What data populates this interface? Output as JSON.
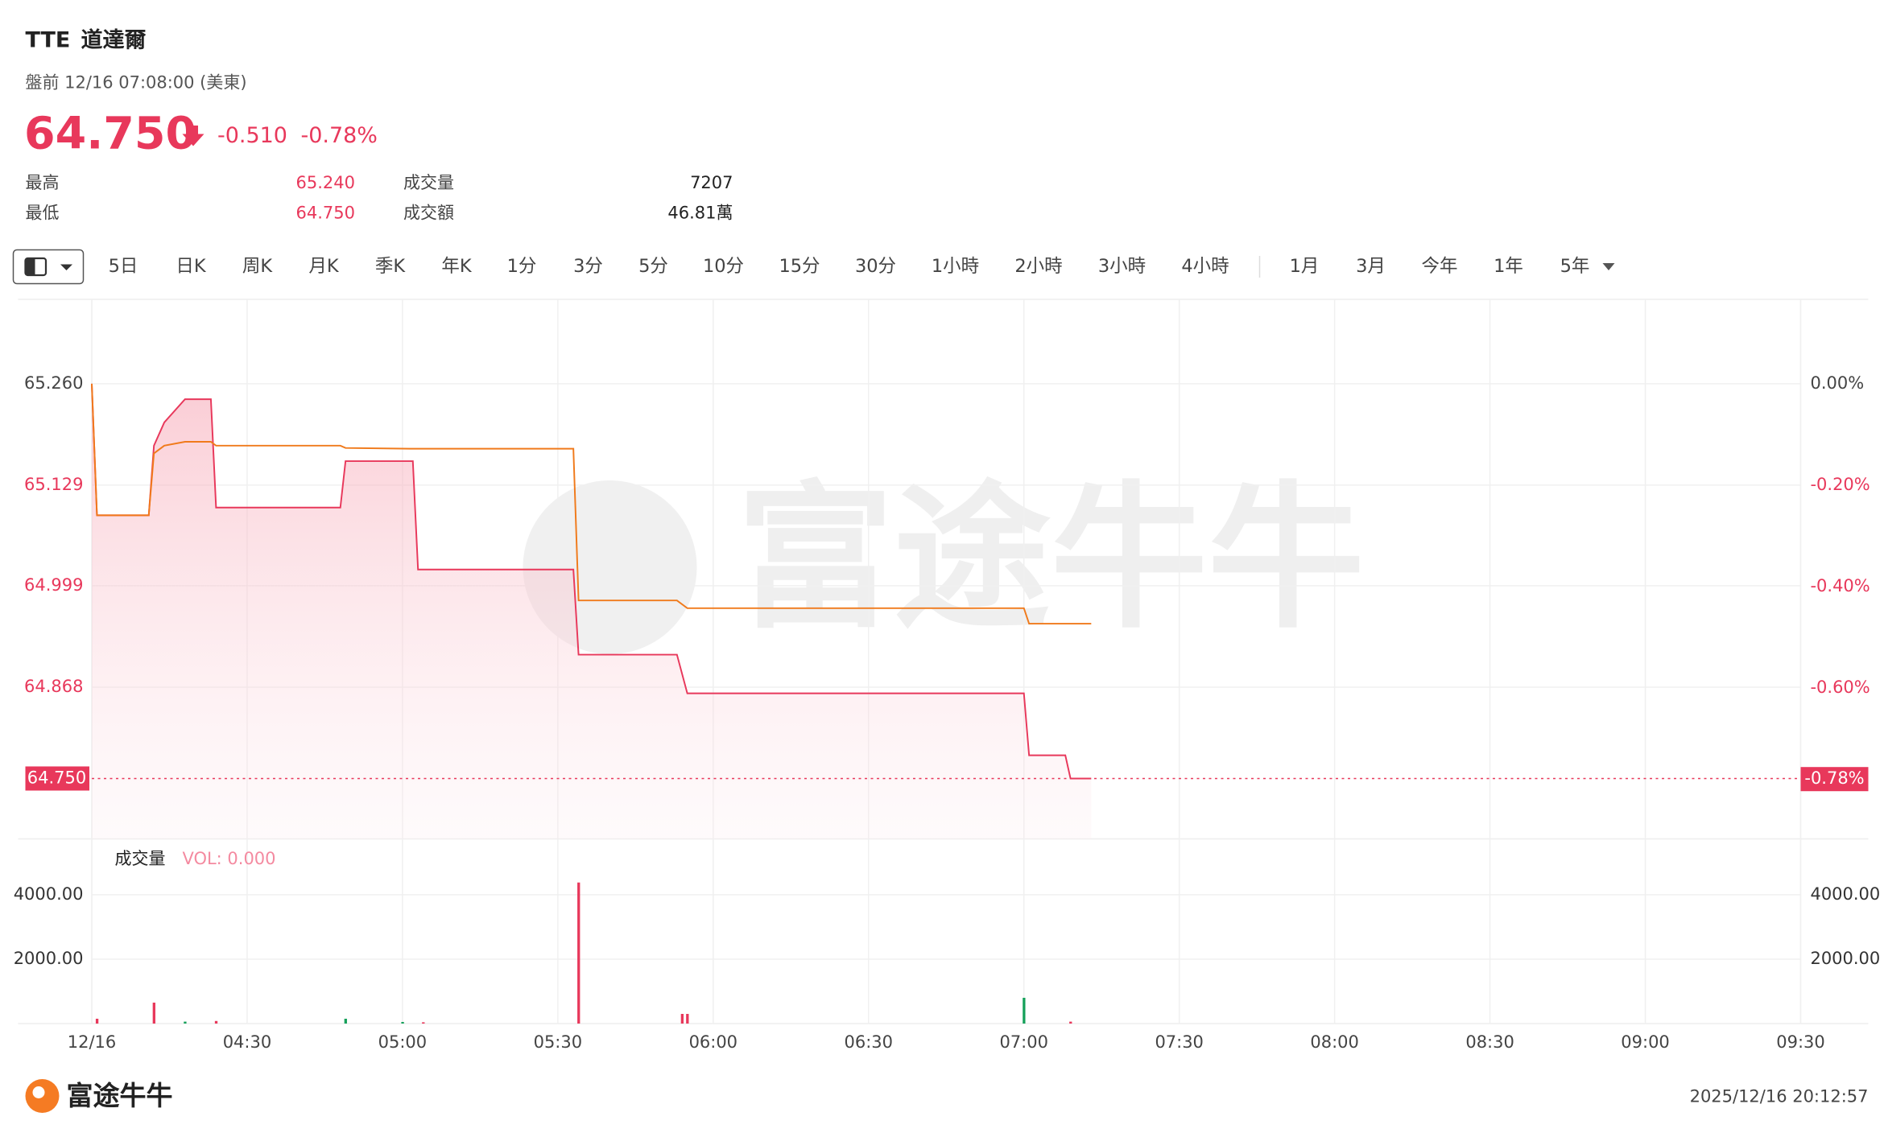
{
  "header": {
    "symbol": "TTE",
    "name": "道達爾",
    "session": "盤前 12/16 07:08:00 (美東)",
    "price": "64.750",
    "change": "-0.510",
    "change_pct": "-0.78%"
  },
  "stats": [
    {
      "label": "最高",
      "value": "65.240"
    },
    {
      "label": "最低",
      "value": "64.750"
    },
    {
      "label": "成交量",
      "value": "7207"
    },
    {
      "label": "成交額",
      "value": "46.81萬"
    }
  ],
  "tabs": [
    "5日",
    "日K",
    "周K",
    "月K",
    "季K",
    "年K",
    "1分",
    "3分",
    "5分",
    "10分",
    "15分",
    "30分",
    "1小時",
    "2小時",
    "3小時",
    "4小時",
    "1月",
    "3月",
    "今年",
    "1年",
    "5年"
  ],
  "chart_data": [
    {
      "type": "line",
      "x": [
        "04:00",
        "04:01",
        "04:11",
        "04:12",
        "04:14",
        "04:18",
        "04:23",
        "04:24",
        "04:48",
        "04:49",
        "05:02",
        "05:03",
        "05:33",
        "05:34",
        "05:53",
        "05:55",
        "07:00",
        "07:01",
        "07:08",
        "07:09",
        "07:13"
      ],
      "series": [
        {
          "color": "#e8385b",
          "values": [
            65.26,
            65.09,
            65.09,
            65.18,
            65.21,
            65.24,
            65.24,
            65.1,
            65.1,
            65.16,
            65.16,
            65.02,
            65.02,
            64.91,
            64.91,
            64.86,
            64.86,
            64.78,
            64.78,
            64.75,
            64.75
          ]
        },
        {
          "color": "#f07a1b",
          "values": [
            65.26,
            65.09,
            65.09,
            65.17,
            65.18,
            65.185,
            65.185,
            65.18,
            65.18,
            65.177,
            65.176,
            65.176,
            65.176,
            64.98,
            64.98,
            64.97,
            64.97,
            64.95,
            64.95,
            64.95,
            64.95
          ]
        }
      ],
      "xlim": [
        "04:00",
        "09:30"
      ],
      "xticks": [
        {
          "value": "04:00",
          "label": "12/16"
        },
        "04:30",
        "05:00",
        "05:30",
        "06:00",
        "06:30",
        "07:00",
        "07:30",
        "08:00",
        "08:30",
        "09:00",
        "09:30"
      ],
      "ylim": [
        64.672,
        65.369
      ],
      "yticks": [
        {
          "value": 65.26,
          "label": "65.260"
        },
        {
          "value": 65.129,
          "label": "65.129"
        },
        {
          "value": 64.999,
          "label": "64.999"
        },
        {
          "value": 64.868,
          "label": "64.868"
        }
      ],
      "y2lim": [
        -0.898,
        0.167
      ],
      "y2ticks": [
        {
          "value": 0,
          "label": "0.00%"
        },
        {
          "value": -0.2,
          "label": "-0.20%"
        },
        {
          "value": -0.4,
          "label": "-0.40%"
        },
        {
          "value": -0.6,
          "label": "-0.60%"
        }
      ],
      "last_price": {
        "value": 64.75,
        "label": "64.750"
      },
      "last_pct": {
        "value": -0.78,
        "label": "-0.78%"
      },
      "grid": true
    },
    {
      "type": "bar",
      "title": "成交量",
      "subtitle": "VOL: 0.000",
      "x": [
        "04:01",
        "04:12",
        "04:18",
        "04:24",
        "04:49",
        "05:00",
        "05:04",
        "05:34",
        "05:54",
        "05:55",
        "07:00",
        "07:09"
      ],
      "values": [
        150,
        650,
        60,
        80,
        150,
        50,
        40,
        4380,
        300,
        300,
        800,
        60
      ],
      "colors": [
        "#e8385b",
        "#e8385b",
        "#15a05a",
        "#e8385b",
        "#15a05a",
        "#15a05a",
        "#e8385b",
        "#e8385b",
        "#e8385b",
        "#e8385b",
        "#15a05a",
        "#e8385b"
      ],
      "ylim": [
        0,
        5660
      ],
      "yticks": [
        {
          "value": 4000,
          "label": "4000.00"
        },
        {
          "value": 2000,
          "label": "2000.00"
        }
      ],
      "grid": true
    }
  ],
  "footer": {
    "brand": "富途牛牛",
    "timestamp": "2025/12/16 20:12:57"
  }
}
